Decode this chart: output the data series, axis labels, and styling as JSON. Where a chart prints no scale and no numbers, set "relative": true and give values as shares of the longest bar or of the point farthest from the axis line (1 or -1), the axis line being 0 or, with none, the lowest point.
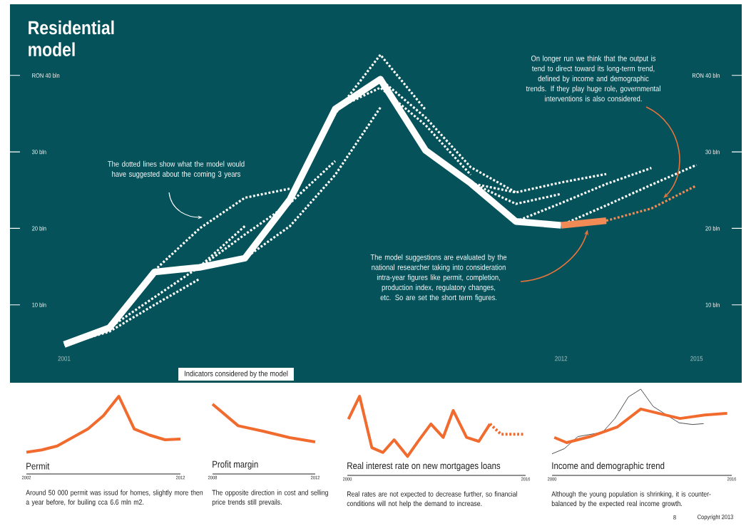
{
  "chart_data": [
    {
      "type": "line",
      "title": "Residential model",
      "annotations": [
        "The dotted lines show what the model would have suggested about the coming 3 years",
        "The model suggestions are evaluated by the national researcher taking into consideration intra-year figures like permit, completion, production index, regulatory changes, etc. So are set the short term figures.",
        "On longer run we think that the output is tend to direct toward its long-term trend, defined by income and demographic trends. If they play huge role, governmental interventions is also considered.",
        "Indicators considered by the model"
      ],
      "xlim": [
        1999.8,
        2016
      ],
      "xticks": [
        2001,
        2012,
        2015
      ],
      "ylim": [
        0,
        49
      ],
      "yticks": [
        {
          "value": 10,
          "label": "10 bln"
        },
        {
          "value": 20,
          "label": "20 bln"
        },
        {
          "value": 30,
          "label": "30 bln"
        },
        {
          "value": 40,
          "label": "RON 40 bln"
        }
      ],
      "y2lim": [
        0,
        49
      ],
      "y2ticks": [
        {
          "value": 10,
          "label": "10 bln"
        },
        {
          "value": 20,
          "label": "20 bln"
        },
        {
          "value": 30,
          "label": "30 bln"
        },
        {
          "value": 40,
          "label": "RON 40 bln"
        }
      ],
      "series": [
        {
          "color": "#ffffff",
          "line_style": "dotted",
          "x": [
            2001,
            2002,
            2003,
            2004
          ],
          "values": [
            4.8,
            6.5,
            10.0,
            13.4
          ]
        },
        {
          "color": "#ffffff",
          "line_style": "dotted",
          "x": [
            2002,
            2003,
            2004,
            2005
          ],
          "values": [
            7.0,
            11.0,
            15.0,
            20.3
          ]
        },
        {
          "color": "#ffffff",
          "line_style": "dotted",
          "x": [
            2003,
            2004,
            2005,
            2006
          ],
          "values": [
            14.5,
            20.0,
            24.0,
            25.2
          ]
        },
        {
          "color": "#ffffff",
          "line_style": "dotted",
          "x": [
            2004,
            2005,
            2006,
            2007
          ],
          "values": [
            14.9,
            19.2,
            23.3,
            28.8
          ]
        },
        {
          "color": "#ffffff",
          "line_style": "dotted",
          "x": [
            2005,
            2006,
            2007,
            2008
          ],
          "values": [
            16.1,
            20.3,
            27.0,
            35.8
          ]
        },
        {
          "color": "#ffffff",
          "line_style": "dotted",
          "x": [
            2006,
            2007,
            2008,
            2009
          ],
          "values": [
            24.0,
            35.0,
            42.7,
            35.5
          ]
        },
        {
          "color": "#ffffff",
          "line_style": "dotted",
          "x": [
            2007,
            2008,
            2009,
            2010
          ],
          "values": [
            35.6,
            38.4,
            33.5,
            27.0
          ]
        },
        {
          "color": "#ffffff",
          "line_style": "dotted",
          "x": [
            2008,
            2009,
            2010,
            2011
          ],
          "values": [
            39.5,
            34.5,
            28.0,
            24.7
          ]
        },
        {
          "color": "#ffffff",
          "line_style": "dotted",
          "x": [
            2009,
            2010,
            2011,
            2012
          ],
          "values": [
            30.2,
            26.0,
            23.2,
            24.5
          ]
        },
        {
          "color": "#ffffff",
          "line_style": "dotted",
          "x": [
            2010,
            2011,
            2012,
            2013
          ],
          "values": [
            25.9,
            24.7,
            26.0,
            27.1
          ]
        },
        {
          "color": "#ffffff",
          "line_style": "dotted",
          "x": [
            2011,
            2012,
            2013,
            2014
          ],
          "values": [
            20.9,
            23.3,
            25.8,
            27.9
          ]
        },
        {
          "color": "#ffffff",
          "line_style": "dotted",
          "x": [
            2012,
            2013,
            2014,
            2015
          ],
          "values": [
            20.4,
            23.0,
            25.7,
            28.3
          ]
        },
        {
          "color": "#ffffff",
          "line_style": "solid",
          "x": [
            2001,
            2002,
            2003,
            2004,
            2005,
            2006,
            2007,
            2008,
            2009,
            2010,
            2011,
            2012
          ],
          "values": [
            4.8,
            7.0,
            14.3,
            14.9,
            16.1,
            23.8,
            35.6,
            39.5,
            30.2,
            25.9,
            20.9,
            20.4
          ]
        },
        {
          "color": "#f28a55",
          "line_style": "solid",
          "x": [
            2012,
            2013
          ],
          "values": [
            20.4,
            21.0
          ]
        },
        {
          "color": "#f28a55",
          "line_style": "dotted",
          "x": [
            2013,
            2014,
            2015
          ],
          "values": [
            21.0,
            22.6,
            25.6
          ]
        }
      ]
    },
    {
      "type": "line",
      "title": "Permit",
      "relative": true,
      "tick_labels": "x",
      "annotations": [
        "Around 50 000 permit was issud for homes, slightly more then a year before, for builing cca 6.6 mln m2."
      ],
      "xlim": [
        2002,
        2012
      ],
      "xticks": [
        2002,
        2012
      ],
      "series": [
        {
          "color": "#f26b2e",
          "x": [
            2002,
            2003,
            2004,
            2005,
            2006,
            2007,
            2008,
            2009,
            2010,
            2011,
            2012
          ],
          "values": [
            0.28,
            0.31,
            0.36,
            0.47,
            0.58,
            0.75,
            1,
            0.58,
            0.5,
            0.44,
            0.45
          ]
        }
      ]
    },
    {
      "type": "line",
      "title": "Profit margin",
      "relative": true,
      "tick_labels": "x",
      "annotations": [
        "The opposite direction in cost and selling price trends still prevails."
      ],
      "xlim": [
        2008,
        2012
      ],
      "xticks": [
        2008,
        2012
      ],
      "series": [
        {
          "color": "#f26b2e",
          "x": [
            2008,
            2009,
            2010,
            2011,
            2012
          ],
          "values": [
            1,
            0.69,
            0.61,
            0.52,
            0.46
          ]
        }
      ]
    },
    {
      "type": "line",
      "title": "Real interest rate on new mortgages loans",
      "relative": true,
      "tick_labels": "x",
      "annotations": [
        "Real rates are not expected to decrease further, so financial conditions will not help the demand to increase."
      ],
      "xlim": [
        2000,
        2016
      ],
      "xticks": [
        2000,
        2016
      ],
      "series": [
        {
          "color": "#f26b2e",
          "line_style": "solid",
          "x": [
            2000.1,
            2001.1,
            2002.2,
            2003.2,
            2004.2,
            2005.4,
            2006.4,
            2007.5,
            2008.6,
            2009.5,
            2010.7,
            2011.8,
            2012.8
          ],
          "values": [
            0.71,
            1,
            0.35,
            0.29,
            0.45,
            0.24,
            0.44,
            0.65,
            0.48,
            0.82,
            0.48,
            0.43,
            0.65
          ]
        },
        {
          "color": "#f26b2e",
          "line_style": "dotted",
          "x": [
            2012.8,
            2013.8,
            2015.9
          ],
          "values": [
            0.65,
            0.52,
            0.52
          ]
        }
      ]
    },
    {
      "type": "line",
      "title": "Income and demographic trend",
      "relative": true,
      "tick_labels": "x",
      "annotations": [
        "Although the young population is shrinking, it is counter-balanced by the expected real income growth.",
        "8",
        "Copyright 2013"
      ],
      "xlim": [
        2000,
        2016
      ],
      "xticks": [
        2000,
        2016
      ],
      "series": [
        {
          "color": "#222222",
          "x": [
            2000,
            2001.1,
            2002.3,
            2004.5,
            2005.6,
            2006.8,
            2007.9,
            2009.0,
            2011.3,
            2012.5,
            2013.5
          ],
          "values": [
            0.25,
            0.31,
            0.45,
            0.5,
            0.66,
            0.91,
            1,
            0.8,
            0.61,
            0.59,
            0.6
          ]
        },
        {
          "color": "#f26b2e",
          "x": [
            2000.2,
            2001.3,
            2003.4,
            2005.8,
            2007.9,
            2009.8,
            2011.4,
            2013.6,
            2015.6
          ],
          "values": [
            0.44,
            0.38,
            0.45,
            0.56,
            0.77,
            0.71,
            0.66,
            0.7,
            0.72
          ]
        }
      ]
    }
  ]
}
